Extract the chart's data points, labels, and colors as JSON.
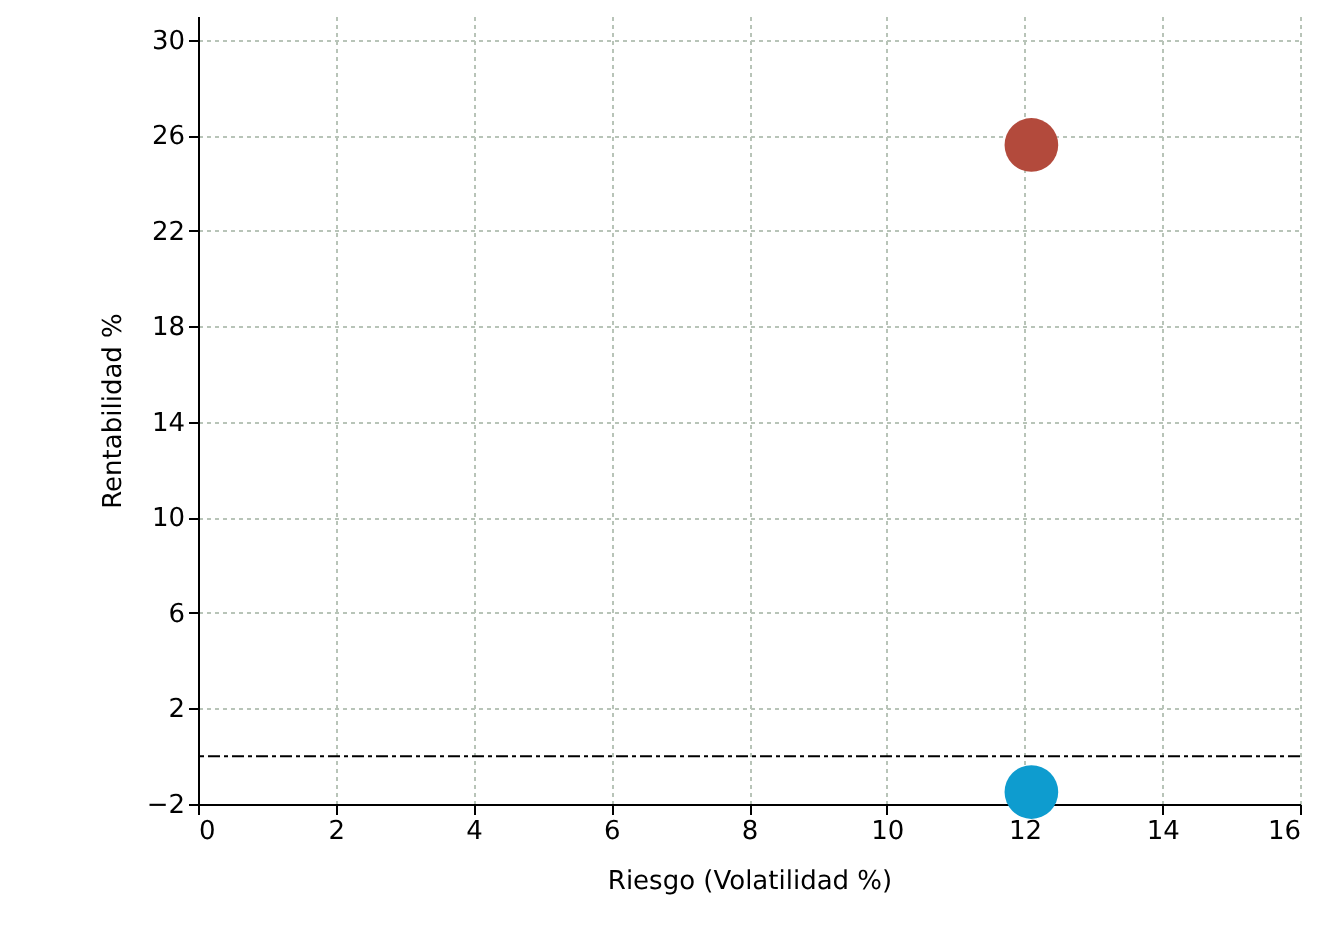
{
  "chart_data": {
    "type": "scatter",
    "xlabel": "Riesgo (Volatilidad %)",
    "ylabel": "Rentabilidad %",
    "xlim": [
      0,
      16
    ],
    "xticks": [
      0,
      2,
      4,
      6,
      8,
      10,
      12,
      14,
      16
    ],
    "ylim": [
      -2,
      31
    ],
    "yticks": [
      -2,
      2,
      6,
      10,
      14,
      18,
      22,
      26,
      30
    ],
    "grid": true,
    "marker": "circle",
    "series": [
      {
        "color": "#b34a3c",
        "x": [
          12.1
        ],
        "values": [
          25.6
        ]
      },
      {
        "color": "#0e9ccf",
        "x": [
          12.1
        ],
        "values": [
          -1.5
        ]
      }
    ],
    "ref_lines": [
      {
        "axis": "y",
        "value": 0,
        "color": "#000000",
        "line_style": "dashed"
      }
    ]
  }
}
